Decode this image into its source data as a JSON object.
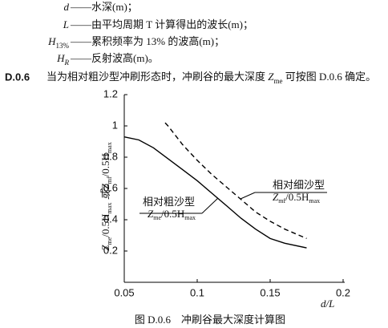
{
  "definitions": [
    {
      "symbol": [
        "d"
      ],
      "text": "——水深(m)；"
    },
    {
      "symbol": [
        "L"
      ],
      "text": "——由平均周期 T 计算得出的波长(m)；"
    },
    {
      "symbol": [
        "H",
        "13%"
      ],
      "text": "——累积频率为 13% 的波高(m)；"
    },
    {
      "symbol": [
        "H",
        "R"
      ],
      "text": "——反射波高(m)。"
    }
  ],
  "clause": {
    "number": "D.0.6",
    "text": [
      "当为相对粗沙型冲刷形态时，冲刷谷的最大深度 ",
      "Z",
      "me",
      " 可按图 D.0.6 确定。"
    ]
  },
  "chart_data": {
    "type": "line",
    "ylabel": [
      "Z",
      "me",
      "/0.5H",
      "max",
      " 或Z",
      "mf",
      "/0.5H",
      "max"
    ],
    "xlabel": "d/L",
    "xlim": [
      0.05,
      0.2
    ],
    "xticks": [
      0.05,
      0.1,
      0.15,
      0.2
    ],
    "ylim": [
      0,
      1.2
    ],
    "yticks": [
      0.2,
      0.4,
      0.6,
      0.8,
      1,
      1.2
    ],
    "series": [
      {
        "name": [
          "相对粗沙型",
          "Z",
          "me",
          "/0.5H",
          "max"
        ],
        "color": "#000000",
        "dash": false,
        "x": [
          0.05,
          0.06,
          0.07,
          0.08,
          0.09,
          0.1,
          0.11,
          0.12,
          0.13,
          0.14,
          0.15,
          0.16,
          0.175
        ],
        "values": [
          0.93,
          0.91,
          0.86,
          0.79,
          0.72,
          0.65,
          0.57,
          0.49,
          0.41,
          0.34,
          0.28,
          0.25,
          0.22
        ]
      },
      {
        "name": [
          "相对细沙型",
          "Z",
          "mf",
          "/0.5H",
          "max"
        ],
        "color": "#000000",
        "dash": true,
        "x": [
          0.078,
          0.08,
          0.09,
          0.1,
          0.11,
          0.12,
          0.13,
          0.14,
          0.15,
          0.16,
          0.175
        ],
        "values": [
          1.02,
          1.0,
          0.88,
          0.78,
          0.69,
          0.61,
          0.53,
          0.45,
          0.39,
          0.34,
          0.28
        ]
      }
    ],
    "caption": "图 D.0.6　冲刷谷最大深度计算图"
  }
}
